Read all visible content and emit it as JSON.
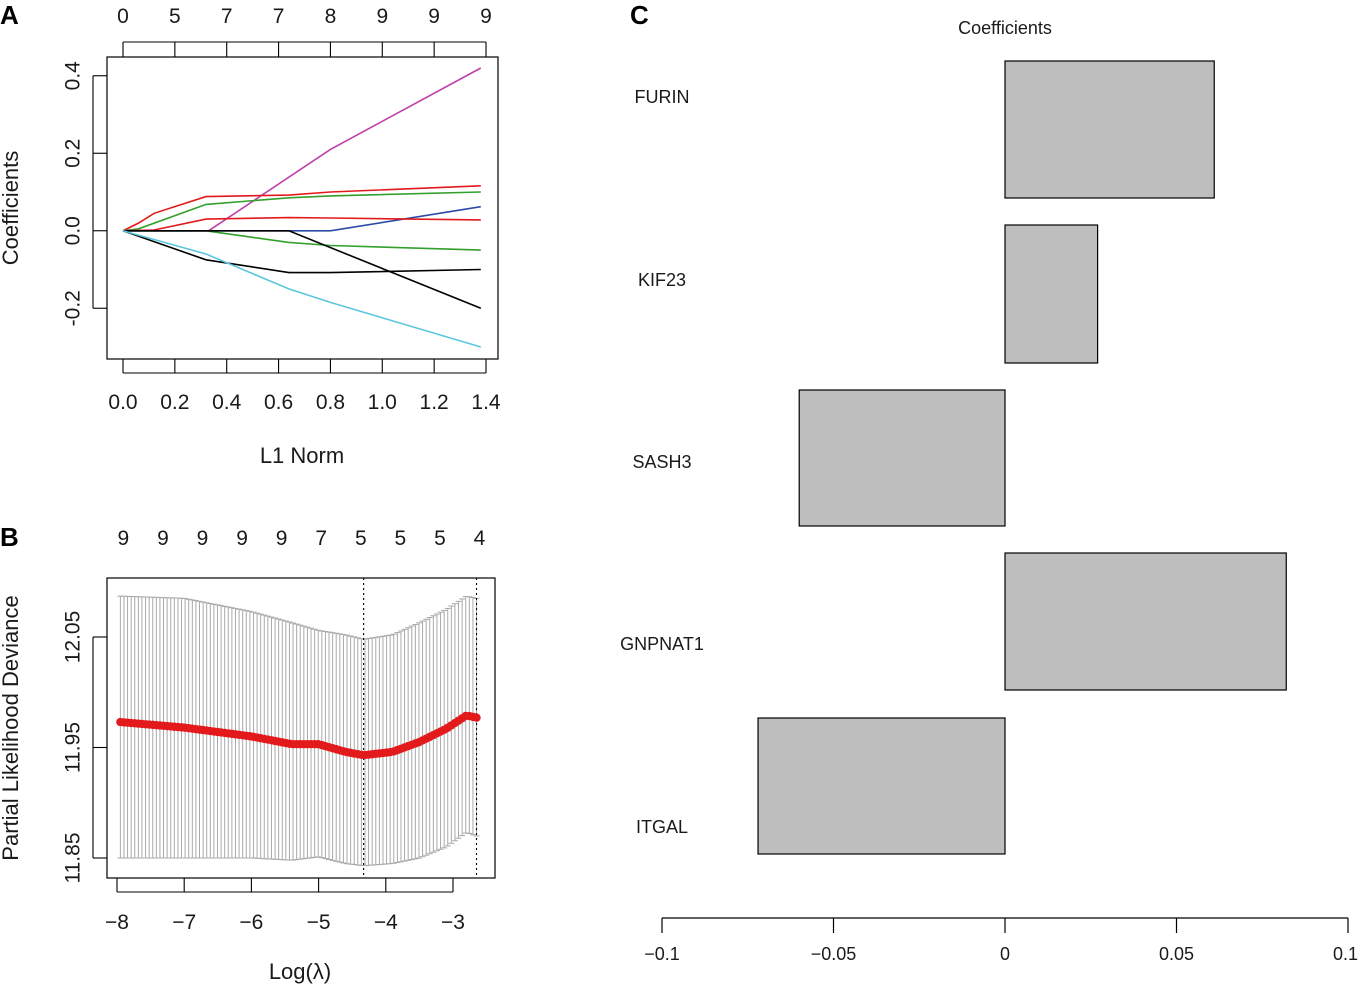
{
  "chart_data": [
    {
      "panel": "A",
      "type": "line",
      "xlabel": "L1 Norm",
      "ylabel": "Coefficients",
      "xlim": [
        0.0,
        1.4
      ],
      "ylim": [
        -0.3,
        0.42
      ],
      "x_ticks": [
        "0.0",
        "0.2",
        "0.4",
        "0.6",
        "0.8",
        "1.0",
        "1.2",
        "1.4"
      ],
      "x_tick_values": [
        0.0,
        0.2,
        0.4,
        0.6,
        0.8,
        1.0,
        1.2,
        1.4
      ],
      "y_ticks": [
        "-0.2",
        "0.0",
        "0.2",
        "0.4"
      ],
      "y_tick_values": [
        -0.2,
        0.0,
        0.2,
        0.4
      ],
      "top_axis_labels": [
        "0",
        "5",
        "7",
        "7",
        "8",
        "9",
        "9",
        "9"
      ],
      "series": [
        {
          "name": "magenta",
          "color": "#bf3fa8",
          "x": [
            0,
            0.33,
            0.8,
            1.38
          ],
          "y": [
            0,
            0,
            0.21,
            0.42
          ]
        },
        {
          "name": "red-1",
          "color": "#e31a1c",
          "x": [
            0,
            0.06,
            0.12,
            0.32,
            0.64,
            0.8,
            1.38
          ],
          "y": [
            0,
            0.02,
            0.045,
            0.088,
            0.092,
            0.1,
            0.116
          ]
        },
        {
          "name": "green-1",
          "color": "#33a02c",
          "x": [
            0,
            0.06,
            0.32,
            0.64,
            0.8,
            1.38
          ],
          "y": [
            0,
            0.005,
            0.068,
            0.085,
            0.09,
            0.1
          ]
        },
        {
          "name": "blue",
          "color": "#2b4ba8",
          "x": [
            0,
            0.8,
            1.38
          ],
          "y": [
            0,
            0,
            0.062
          ]
        },
        {
          "name": "red-2",
          "color": "#e31a1c",
          "x": [
            0,
            0.12,
            0.32,
            0.64,
            0.8,
            1.38
          ],
          "y": [
            0,
            0.002,
            0.03,
            0.034,
            0.033,
            0.028
          ]
        },
        {
          "name": "green-2",
          "color": "#33a02c",
          "x": [
            0,
            0.32,
            0.64,
            0.8,
            1.38
          ],
          "y": [
            0,
            0,
            -0.03,
            -0.038,
            -0.05
          ]
        },
        {
          "name": "black-1",
          "color": "#000000",
          "x": [
            0,
            0.32,
            0.64,
            0.8,
            1.38
          ],
          "y": [
            0,
            -0.075,
            -0.108,
            -0.108,
            -0.1
          ]
        },
        {
          "name": "black-2",
          "color": "#000000",
          "x": [
            0,
            0.64,
            1.38
          ],
          "y": [
            0,
            0,
            -0.2
          ]
        },
        {
          "name": "cyan",
          "color": "#5bc7dd",
          "x": [
            0,
            0.32,
            0.64,
            0.8,
            1.38
          ],
          "y": [
            0,
            -0.06,
            -0.15,
            -0.185,
            -0.3
          ]
        }
      ]
    },
    {
      "panel": "B",
      "type": "scatter",
      "xlabel": "Log(λ)",
      "ylabel": "Partial Likelihood Deviance",
      "xlim": [
        -8.0,
        -2.6
      ],
      "ylim": [
        11.838,
        12.11
      ],
      "x_ticks": [
        "−8",
        "−7",
        "−6",
        "−5",
        "−4",
        "−3"
      ],
      "x_tick_values": [
        -8,
        -7,
        -6,
        -5,
        -4,
        -3
      ],
      "y_ticks": [
        "11.85",
        "11.95",
        "12.05"
      ],
      "y_tick_values": [
        11.85,
        11.95,
        12.05
      ],
      "top_axis_labels": [
        "9",
        "9",
        "9",
        "9",
        "9",
        "7",
        "5",
        "5",
        "5",
        "4"
      ],
      "point_color": "#e31a1c",
      "errorbar_color": "#a9a9a9",
      "vlines": [
        -4.33,
        -2.65
      ],
      "lambda_range": [
        -7.95,
        -2.65
      ],
      "curve_knots_x": [
        -7.95,
        -7,
        -6,
        -5.4,
        -5,
        -4.6,
        -4.33,
        -3.9,
        -3.5,
        -3.1,
        -2.8,
        -2.65
      ],
      "curve_knots_y": [
        11.973,
        11.968,
        11.96,
        11.953,
        11.953,
        11.946,
        11.943,
        11.946,
        11.955,
        11.967,
        11.979,
        11.977
      ],
      "upper_knots_y": [
        12.087,
        12.085,
        12.073,
        12.063,
        12.056,
        12.052,
        12.048,
        12.052,
        12.063,
        12.075,
        12.087,
        12.085
      ],
      "lower_knots_y": [
        11.85,
        11.85,
        11.85,
        11.848,
        11.851,
        11.845,
        11.843,
        11.845,
        11.85,
        11.86,
        11.873,
        11.87
      ]
    },
    {
      "panel": "C",
      "type": "bar",
      "orientation": "horizontal",
      "title": "Coefficients",
      "categories": [
        "FURIN",
        "KIF23",
        "SASH3",
        "GNPNAT1",
        "ITGAL"
      ],
      "values": [
        0.061,
        0.027,
        -0.06,
        0.082,
        -0.072
      ],
      "xlim": [
        -0.1,
        0.1
      ],
      "x_ticks": [
        "−0.1",
        "−0.05",
        "0",
        "0.05",
        "0.1"
      ],
      "x_tick_values": [
        -0.1,
        -0.05,
        0,
        0.05,
        0.1
      ],
      "bar_color": "#bebebe"
    }
  ],
  "panel_labels": {
    "a": "A",
    "b": "B",
    "c": "C"
  }
}
